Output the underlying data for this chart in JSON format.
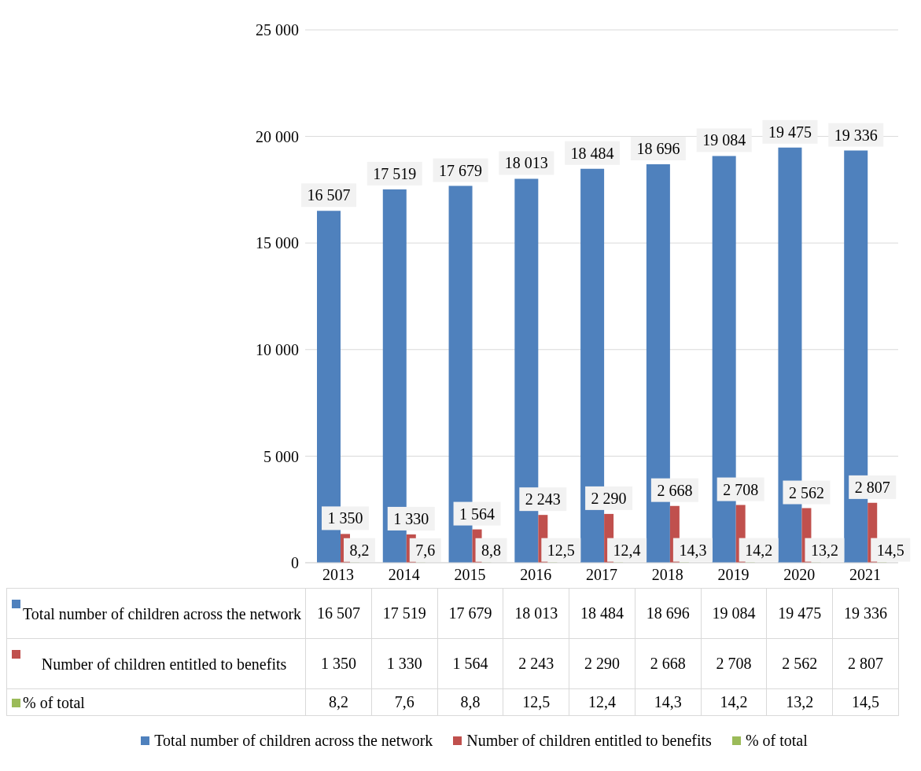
{
  "chart_data": {
    "type": "bar",
    "categories": [
      "2013",
      "2014",
      "2015",
      "2016",
      "2017",
      "2018",
      "2019",
      "2020",
      "2021"
    ],
    "series": [
      {
        "name": "Total number of children across the network",
        "color": "#4f81bd",
        "values": [
          16507,
          17519,
          17679,
          18013,
          18484,
          18696,
          19084,
          19475,
          19336
        ],
        "value_labels": [
          "16 507",
          "17 519",
          "17 679",
          "18 013",
          "18 484",
          "18 696",
          "19 084",
          "19 475",
          "19 336"
        ]
      },
      {
        "name": "Number of children entitled to benefits",
        "color": "#c0504d",
        "values": [
          1350,
          1330,
          1564,
          2243,
          2290,
          2668,
          2708,
          2562,
          2807
        ],
        "value_labels": [
          "1 350",
          "1 330",
          "1 564",
          "2 243",
          "2 290",
          "2 668",
          "2 708",
          "2 562",
          "2 807"
        ]
      },
      {
        "name": "% of total",
        "color": "#9bbb59",
        "values": [
          8.2,
          7.6,
          8.8,
          12.5,
          12.4,
          14.3,
          14.2,
          13.2,
          14.5
        ],
        "value_labels": [
          "8,2",
          "7,6",
          "8,8",
          "12,5",
          "12,4",
          "14,3",
          "14,2",
          "13,2",
          "14,5"
        ]
      }
    ],
    "ylim": [
      0,
      25000
    ],
    "yticks": [
      0,
      {
        "value": 5000,
        "label": "5 000"
      },
      {
        "value": 10000,
        "label": "10 000"
      },
      {
        "value": 15000,
        "label": "15 000"
      },
      {
        "value": 20000,
        "label": "20 000"
      },
      {
        "value": 25000,
        "label": "25 000"
      }
    ],
    "grid": "y",
    "legend": "bottom"
  }
}
